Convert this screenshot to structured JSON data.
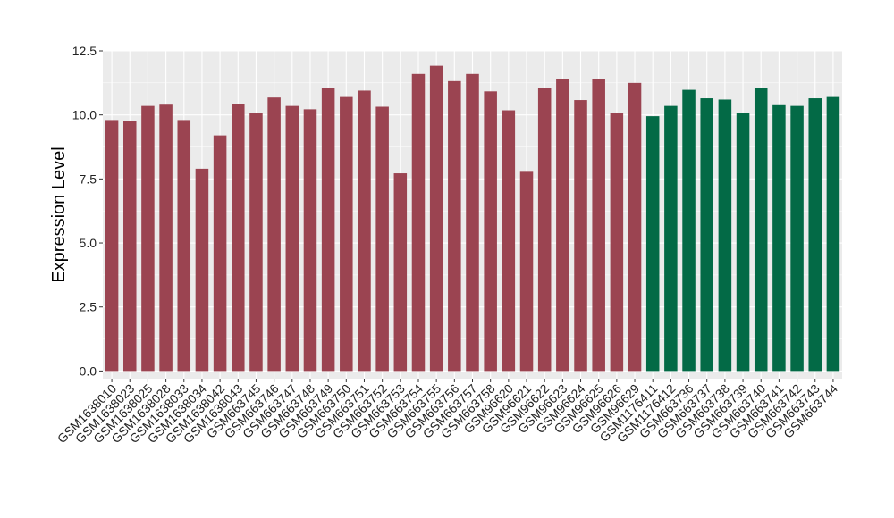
{
  "chart_data": {
    "type": "bar",
    "title": "",
    "xlabel": "",
    "ylabel": "Expression Level",
    "ylim": [
      -0.3,
      12.5
    ],
    "yticks": [
      "0.0",
      "2.5",
      "5.0",
      "7.5",
      "10.0",
      "12.5"
    ],
    "grid": true,
    "legend": "none",
    "categories": [
      "GSM1638010",
      "GSM1638023",
      "GSM1638025",
      "GSM1638028",
      "GSM1638033",
      "GSM1638034",
      "GSM1638042",
      "GSM1638043",
      "GSM663745",
      "GSM663746",
      "GSM663747",
      "GSM663748",
      "GSM663749",
      "GSM663750",
      "GSM663751",
      "GSM663752",
      "GSM663753",
      "GSM663754",
      "GSM663755",
      "GSM663756",
      "GSM663757",
      "GSM663758",
      "GSM96620",
      "GSM96621",
      "GSM96622",
      "GSM96623",
      "GSM96624",
      "GSM96625",
      "GSM96626",
      "GSM96629",
      "GSM1176411",
      "GSM1176412",
      "GSM663736",
      "GSM663737",
      "GSM663738",
      "GSM663739",
      "GSM663740",
      "GSM663741",
      "GSM663742",
      "GSM663743",
      "GSM663744"
    ],
    "values": [
      9.8,
      9.75,
      10.35,
      10.4,
      9.8,
      7.9,
      9.2,
      10.42,
      10.08,
      10.68,
      10.35,
      10.22,
      11.05,
      10.7,
      10.95,
      10.32,
      7.72,
      11.6,
      11.92,
      11.32,
      11.6,
      10.92,
      10.18,
      7.78,
      11.05,
      11.4,
      10.58,
      11.4,
      10.08,
      11.25,
      9.95,
      10.35,
      10.98,
      10.65,
      10.6,
      10.08,
      11.05,
      10.38,
      10.35,
      10.65,
      10.7
    ],
    "groups": [
      0,
      0,
      0,
      0,
      0,
      0,
      0,
      0,
      0,
      0,
      0,
      0,
      0,
      0,
      0,
      0,
      0,
      0,
      0,
      0,
      0,
      0,
      0,
      0,
      0,
      0,
      0,
      0,
      0,
      0,
      1,
      1,
      1,
      1,
      1,
      1,
      1,
      1,
      1,
      1,
      1
    ],
    "colors": [
      "#9b4451",
      "#036a46"
    ]
  },
  "style": {
    "panel_background": "#ebebeb",
    "grid_color": "#ffffff"
  }
}
